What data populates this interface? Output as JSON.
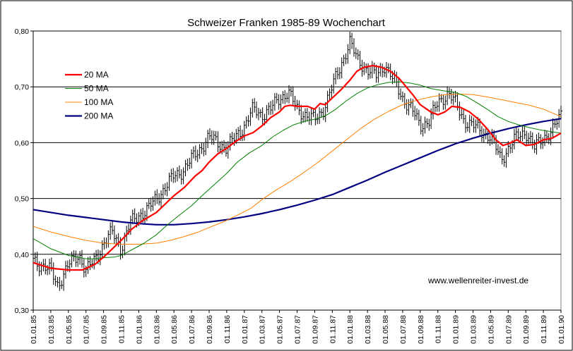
{
  "chart_data": {
    "type": "line",
    "title": "Schweizer Franken 1985-89 Wochenchart",
    "annotation": "www.wellenreiter-invest.de",
    "ylim": [
      0.3,
      0.8
    ],
    "yticks": [
      {
        "value": 0.3,
        "label": "0,30"
      },
      {
        "value": 0.4,
        "label": "0,40"
      },
      {
        "value": 0.5,
        "label": "0,50"
      },
      {
        "value": 0.6,
        "label": "0,60"
      },
      {
        "value": 0.7,
        "label": "0,70"
      },
      {
        "value": 0.8,
        "label": "0,80"
      }
    ],
    "xticks": [
      "01.01.85",
      "01.03.85",
      "01.05.85",
      "01.07.85",
      "01.09.85",
      "01.11.85",
      "01.01.86",
      "01.03.86",
      "01.05.86",
      "01.07.86",
      "01.09.86",
      "01.11.86",
      "01.01.87",
      "01.03.87",
      "01.05.87",
      "01.07.87",
      "01.09.87",
      "01.11.87",
      "01.01.88",
      "01.03.88",
      "01.05.88",
      "01.07.88",
      "01.09.88",
      "01.11.88",
      "01.01.89",
      "01.03.89",
      "01.05.89",
      "01.07.89",
      "01.09.89",
      "01.11.89",
      "01.01.90"
    ],
    "grid": "horizontal",
    "legend_position": "top-left",
    "price_anchors": [
      [
        0,
        0.39
      ],
      [
        1,
        0.37
      ],
      [
        1.4,
        0.345
      ],
      [
        2,
        0.38
      ],
      [
        2.6,
        0.4
      ],
      [
        3,
        0.37
      ],
      [
        3.5,
        0.39
      ],
      [
        4,
        0.42
      ],
      [
        4.5,
        0.44
      ],
      [
        5,
        0.41
      ],
      [
        5.5,
        0.455
      ],
      [
        6,
        0.47
      ],
      [
        6.5,
        0.48
      ],
      [
        7,
        0.5
      ],
      [
        7.5,
        0.52
      ],
      [
        8,
        0.54
      ],
      [
        8.5,
        0.55
      ],
      [
        9,
        0.57
      ],
      [
        9.5,
        0.59
      ],
      [
        10,
        0.61
      ],
      [
        10.5,
        0.6
      ],
      [
        11,
        0.59
      ],
      [
        11.5,
        0.61
      ],
      [
        12,
        0.63
      ],
      [
        12.5,
        0.66
      ],
      [
        13,
        0.65
      ],
      [
        13.5,
        0.66
      ],
      [
        14,
        0.68
      ],
      [
        14.5,
        0.69
      ],
      [
        15,
        0.66
      ],
      [
        15.5,
        0.65
      ],
      [
        16,
        0.64
      ],
      [
        16.5,
        0.66
      ],
      [
        17,
        0.7
      ],
      [
        17.5,
        0.74
      ],
      [
        18,
        0.78
      ],
      [
        18.4,
        0.75
      ],
      [
        19,
        0.73
      ],
      [
        19.5,
        0.72
      ],
      [
        20,
        0.74
      ],
      [
        20.5,
        0.71
      ],
      [
        21,
        0.68
      ],
      [
        21.5,
        0.66
      ],
      [
        22,
        0.63
      ],
      [
        22.5,
        0.64
      ],
      [
        23,
        0.67
      ],
      [
        23.6,
        0.69
      ],
      [
        24,
        0.67
      ],
      [
        24.5,
        0.64
      ],
      [
        25,
        0.63
      ],
      [
        25.5,
        0.62
      ],
      [
        26,
        0.61
      ],
      [
        26.6,
        0.57
      ],
      [
        27,
        0.59
      ],
      [
        27.5,
        0.61
      ],
      [
        28,
        0.62
      ],
      [
        28.5,
        0.59
      ],
      [
        29,
        0.61
      ],
      [
        29.5,
        0.62
      ],
      [
        30,
        0.65
      ]
    ],
    "series": [
      {
        "name": "20 MA",
        "color": "#ff0000",
        "width": 2.2,
        "values": [
          [
            0,
            0.385
          ],
          [
            1,
            0.375
          ],
          [
            2,
            0.372
          ],
          [
            2.8,
            0.372
          ],
          [
            3.5,
            0.382
          ],
          [
            4,
            0.395
          ],
          [
            4.5,
            0.41
          ],
          [
            5,
            0.425
          ],
          [
            5.6,
            0.445
          ],
          [
            6.2,
            0.46
          ],
          [
            7,
            0.475
          ],
          [
            7.5,
            0.49
          ],
          [
            8,
            0.505
          ],
          [
            8.6,
            0.52
          ],
          [
            9.2,
            0.54
          ],
          [
            9.6,
            0.55
          ],
          [
            10,
            0.565
          ],
          [
            10.5,
            0.58
          ],
          [
            11,
            0.59
          ],
          [
            11.5,
            0.602
          ],
          [
            12,
            0.612
          ],
          [
            12.5,
            0.618
          ],
          [
            13,
            0.63
          ],
          [
            13.5,
            0.645
          ],
          [
            14,
            0.655
          ],
          [
            14.3,
            0.665
          ],
          [
            14.6,
            0.667
          ],
          [
            15,
            0.665
          ],
          [
            15.6,
            0.665
          ],
          [
            16,
            0.66
          ],
          [
            16.3,
            0.67
          ],
          [
            16.6,
            0.668
          ],
          [
            17,
            0.68
          ],
          [
            17.5,
            0.695
          ],
          [
            18,
            0.712
          ],
          [
            18.4,
            0.728
          ],
          [
            18.8,
            0.735
          ],
          [
            19.3,
            0.738
          ],
          [
            19.8,
            0.735
          ],
          [
            20.3,
            0.728
          ],
          [
            20.8,
            0.715
          ],
          [
            21.2,
            0.7
          ],
          [
            21.6,
            0.685
          ],
          [
            22,
            0.668
          ],
          [
            22.6,
            0.655
          ],
          [
            23,
            0.65
          ],
          [
            23.4,
            0.655
          ],
          [
            23.8,
            0.665
          ],
          [
            24.3,
            0.663
          ],
          [
            24.8,
            0.655
          ],
          [
            25.3,
            0.642
          ],
          [
            25.8,
            0.625
          ],
          [
            26.3,
            0.605
          ],
          [
            26.7,
            0.595
          ],
          [
            27,
            0.598
          ],
          [
            27.5,
            0.605
          ],
          [
            28,
            0.595
          ],
          [
            28.5,
            0.597
          ],
          [
            29,
            0.605
          ],
          [
            29.5,
            0.608
          ],
          [
            30,
            0.617
          ]
        ]
      },
      {
        "name": "50 MA",
        "color": "#008000",
        "width": 1,
        "values": [
          [
            0,
            0.428
          ],
          [
            1,
            0.41
          ],
          [
            2,
            0.398
          ],
          [
            3,
            0.392
          ],
          [
            3.5,
            0.392
          ],
          [
            4,
            0.394
          ],
          [
            4.6,
            0.395
          ],
          [
            5,
            0.398
          ],
          [
            5.6,
            0.408
          ],
          [
            6.3,
            0.42
          ],
          [
            7,
            0.435
          ],
          [
            7.6,
            0.452
          ],
          [
            8.3,
            0.47
          ],
          [
            9,
            0.487
          ],
          [
            9.6,
            0.505
          ],
          [
            10.3,
            0.525
          ],
          [
            11,
            0.545
          ],
          [
            11.6,
            0.565
          ],
          [
            12.3,
            0.582
          ],
          [
            13,
            0.595
          ],
          [
            13.6,
            0.61
          ],
          [
            14.2,
            0.622
          ],
          [
            14.8,
            0.632
          ],
          [
            15.4,
            0.638
          ],
          [
            16,
            0.642
          ],
          [
            16.6,
            0.648
          ],
          [
            17.2,
            0.66
          ],
          [
            17.8,
            0.675
          ],
          [
            18.4,
            0.688
          ],
          [
            19,
            0.698
          ],
          [
            19.6,
            0.704
          ],
          [
            20.2,
            0.708
          ],
          [
            20.8,
            0.709
          ],
          [
            21.4,
            0.707
          ],
          [
            22,
            0.703
          ],
          [
            22.6,
            0.697
          ],
          [
            23.3,
            0.693
          ],
          [
            24,
            0.69
          ],
          [
            24.6,
            0.683
          ],
          [
            25.2,
            0.672
          ],
          [
            25.8,
            0.66
          ],
          [
            26.4,
            0.647
          ],
          [
            27,
            0.638
          ],
          [
            27.6,
            0.632
          ],
          [
            28.2,
            0.627
          ],
          [
            28.8,
            0.623
          ],
          [
            29.4,
            0.62
          ],
          [
            30,
            0.617
          ]
        ]
      },
      {
        "name": "100 MA",
        "color": "#ff8000",
        "width": 1,
        "values": [
          [
            0,
            0.45
          ],
          [
            1,
            0.44
          ],
          [
            2,
            0.432
          ],
          [
            3,
            0.425
          ],
          [
            4,
            0.42
          ],
          [
            5,
            0.418
          ],
          [
            6,
            0.418
          ],
          [
            7,
            0.42
          ],
          [
            7.8,
            0.425
          ],
          [
            8.6,
            0.432
          ],
          [
            9.4,
            0.44
          ],
          [
            10,
            0.448
          ],
          [
            10.8,
            0.458
          ],
          [
            11.6,
            0.47
          ],
          [
            12.4,
            0.483
          ],
          [
            13,
            0.498
          ],
          [
            13.8,
            0.515
          ],
          [
            14.6,
            0.53
          ],
          [
            15.4,
            0.547
          ],
          [
            16.2,
            0.565
          ],
          [
            17,
            0.585
          ],
          [
            17.8,
            0.605
          ],
          [
            18.6,
            0.625
          ],
          [
            19.4,
            0.642
          ],
          [
            20.2,
            0.656
          ],
          [
            21,
            0.668
          ],
          [
            21.8,
            0.676
          ],
          [
            22.6,
            0.682
          ],
          [
            23.4,
            0.686
          ],
          [
            24.2,
            0.687
          ],
          [
            25,
            0.686
          ],
          [
            25.8,
            0.682
          ],
          [
            26.6,
            0.677
          ],
          [
            27.4,
            0.672
          ],
          [
            28.2,
            0.667
          ],
          [
            29,
            0.66
          ],
          [
            29.6,
            0.652
          ],
          [
            30,
            0.647
          ]
        ]
      },
      {
        "name": "200 MA",
        "color": "#000080",
        "width": 2.2,
        "values": [
          [
            0,
            0.48
          ],
          [
            1,
            0.475
          ],
          [
            2,
            0.47
          ],
          [
            3,
            0.466
          ],
          [
            4,
            0.462
          ],
          [
            5,
            0.458
          ],
          [
            6,
            0.455
          ],
          [
            7,
            0.453
          ],
          [
            8,
            0.453
          ],
          [
            9,
            0.455
          ],
          [
            10,
            0.458
          ],
          [
            11,
            0.462
          ],
          [
            12,
            0.467
          ],
          [
            13,
            0.473
          ],
          [
            14,
            0.48
          ],
          [
            15,
            0.488
          ],
          [
            16,
            0.497
          ],
          [
            17,
            0.507
          ],
          [
            18,
            0.52
          ],
          [
            19,
            0.533
          ],
          [
            20,
            0.547
          ],
          [
            21,
            0.56
          ],
          [
            22,
            0.573
          ],
          [
            23,
            0.586
          ],
          [
            24,
            0.598
          ],
          [
            25,
            0.608
          ],
          [
            26,
            0.617
          ],
          [
            27,
            0.625
          ],
          [
            28,
            0.632
          ],
          [
            29,
            0.638
          ],
          [
            30,
            0.643
          ]
        ]
      }
    ]
  }
}
